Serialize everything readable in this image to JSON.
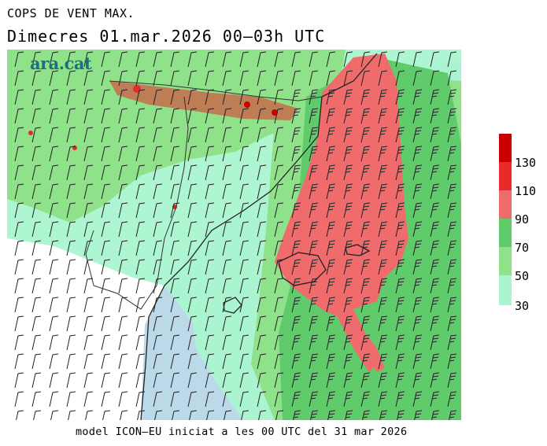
{
  "header": {
    "title": "COPS DE VENT MAX.",
    "subtitle": "Dimecres  01.mar.2026 00–03h UTC"
  },
  "logo": {
    "text": "ara.cat"
  },
  "footer": {
    "text": "model ICON–EU iniciat a les 00 UTC del 31 mar 2026"
  },
  "legend": {
    "levels": [
      "30",
      "50",
      "70",
      "90",
      "110",
      "130"
    ],
    "colors": [
      "#aaf5d0",
      "#8fe28a",
      "#5fcb6a",
      "#f06b6b",
      "#e82a2a",
      "#c80000"
    ]
  },
  "map_colors": {
    "sea": "#bcd9ea",
    "land": "#ffffff",
    "wind_30": "#aaf5d0",
    "wind_50": "#8fe28a",
    "wind_70": "#5fcb6a",
    "wind_90": "#f06b6b",
    "wind_110": "#e82a2a",
    "wind_130": "#c80000"
  }
}
